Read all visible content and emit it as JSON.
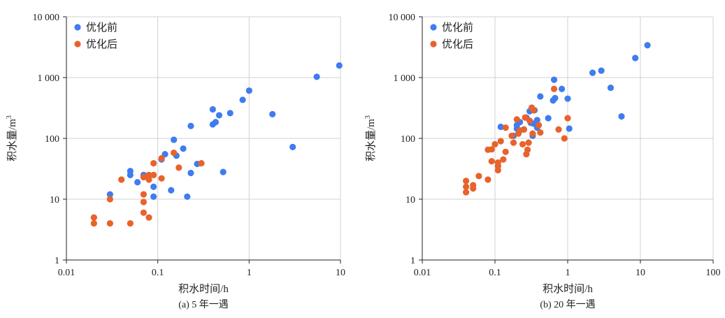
{
  "colors": {
    "before": "#3F7CF0",
    "after": "#E8622C",
    "grid": "#D0D0D0",
    "axis": "#222222"
  },
  "chart_data": [
    {
      "type": "scatter",
      "caption": "(a) 5 年一遇",
      "xlabel": "积水时间/h",
      "ylabel_main": "积水量/m",
      "ylabel_sup": "3",
      "xscale": "log",
      "yscale": "log",
      "xlim": [
        0.01,
        10
      ],
      "ylim": [
        1,
        10000
      ],
      "xticks": [
        0.01,
        0.1,
        1,
        10
      ],
      "xtick_labels": [
        "0.01",
        "0.1",
        "1",
        "10"
      ],
      "yticks": [
        1,
        10,
        100,
        1000,
        10000
      ],
      "ytick_labels": [
        "1",
        "10",
        "100",
        "1 000",
        "10 000"
      ],
      "grid": true,
      "legend_position": "top-left",
      "series": [
        {
          "name": "优化前",
          "color_key": "before",
          "points": [
            [
              0.03,
              12
            ],
            [
              0.05,
              25
            ],
            [
              0.05,
              29
            ],
            [
              0.06,
              19
            ],
            [
              0.07,
              25
            ],
            [
              0.09,
              16
            ],
            [
              0.09,
              11
            ],
            [
              0.11,
              45
            ],
            [
              0.12,
              55
            ],
            [
              0.14,
              14
            ],
            [
              0.15,
              95
            ],
            [
              0.16,
              52
            ],
            [
              0.19,
              68
            ],
            [
              0.21,
              11
            ],
            [
              0.23,
              27
            ],
            [
              0.23,
              160
            ],
            [
              0.27,
              38
            ],
            [
              0.4,
              300
            ],
            [
              0.4,
              170
            ],
            [
              0.43,
              185
            ],
            [
              0.47,
              240
            ],
            [
              0.52,
              28
            ],
            [
              0.62,
              260
            ],
            [
              0.85,
              430
            ],
            [
              1.0,
              610
            ],
            [
              1.8,
              250
            ],
            [
              3.0,
              72
            ],
            [
              5.5,
              1030
            ],
            [
              9.7,
              1580
            ]
          ]
        },
        {
          "name": "优化后",
          "color_key": "after",
          "points": [
            [
              0.02,
              5
            ],
            [
              0.02,
              4
            ],
            [
              0.03,
              10
            ],
            [
              0.03,
              4
            ],
            [
              0.04,
              21
            ],
            [
              0.05,
              4
            ],
            [
              0.07,
              23
            ],
            [
              0.07,
              12
            ],
            [
              0.07,
              9
            ],
            [
              0.07,
              6
            ],
            [
              0.08,
              25
            ],
            [
              0.08,
              21
            ],
            [
              0.08,
              5
            ],
            [
              0.09,
              39
            ],
            [
              0.09,
              25
            ],
            [
              0.11,
              22
            ],
            [
              0.11,
              47
            ],
            [
              0.15,
              58
            ],
            [
              0.17,
              33
            ],
            [
              0.3,
              39
            ]
          ]
        }
      ]
    },
    {
      "type": "scatter",
      "caption": "(b) 20 年一遇",
      "xlabel": "积水时间/h",
      "ylabel_main": "积水量/m",
      "ylabel_sup": "3",
      "xscale": "log",
      "yscale": "log",
      "xlim": [
        0.01,
        100
      ],
      "ylim": [
        1,
        10000
      ],
      "xticks": [
        0.01,
        0.1,
        1,
        10,
        100
      ],
      "xtick_labels": [
        "0.01",
        "0.1",
        "1",
        "10",
        "100"
      ],
      "yticks": [
        1,
        10,
        100,
        1000,
        10000
      ],
      "ytick_labels": [
        "1",
        "10",
        "100",
        "1 000",
        "10 000"
      ],
      "grid": true,
      "legend_position": "top-left",
      "series": [
        {
          "name": "优化前",
          "color_key": "before",
          "points": [
            [
              0.12,
              155
            ],
            [
              0.18,
              110
            ],
            [
              0.2,
              145
            ],
            [
              0.2,
              165
            ],
            [
              0.22,
              185
            ],
            [
              0.25,
              140
            ],
            [
              0.27,
              220
            ],
            [
              0.3,
              280
            ],
            [
              0.31,
              180
            ],
            [
              0.32,
              300
            ],
            [
              0.33,
              110
            ],
            [
              0.34,
              175
            ],
            [
              0.35,
              290
            ],
            [
              0.38,
              150
            ],
            [
              0.38,
              200
            ],
            [
              0.42,
              490
            ],
            [
              0.54,
              215
            ],
            [
              0.63,
              420
            ],
            [
              0.65,
              920
            ],
            [
              0.67,
              460
            ],
            [
              0.83,
              650
            ],
            [
              1.0,
              450
            ],
            [
              1.05,
              145
            ],
            [
              2.2,
              1200
            ],
            [
              2.9,
              1300
            ],
            [
              3.9,
              680
            ],
            [
              5.5,
              230
            ],
            [
              8.5,
              2100
            ],
            [
              12.5,
              3400
            ]
          ]
        },
        {
          "name": "优化后",
          "color_key": "after",
          "points": [
            [
              0.04,
              20
            ],
            [
              0.04,
              16
            ],
            [
              0.04,
              13
            ],
            [
              0.05,
              17
            ],
            [
              0.05,
              15
            ],
            [
              0.06,
              24
            ],
            [
              0.08,
              21
            ],
            [
              0.08,
              65
            ],
            [
              0.09,
              42
            ],
            [
              0.09,
              66
            ],
            [
              0.1,
              80
            ],
            [
              0.11,
              40
            ],
            [
              0.11,
              35
            ],
            [
              0.11,
              30
            ],
            [
              0.12,
              90
            ],
            [
              0.13,
              45
            ],
            [
              0.14,
              150
            ],
            [
              0.14,
              60
            ],
            [
              0.17,
              110
            ],
            [
              0.18,
              85
            ],
            [
              0.2,
              205
            ],
            [
              0.21,
              120
            ],
            [
              0.22,
              135
            ],
            [
              0.24,
              80
            ],
            [
              0.25,
              140
            ],
            [
              0.26,
              220
            ],
            [
              0.27,
              55
            ],
            [
              0.28,
              65
            ],
            [
              0.29,
              85
            ],
            [
              0.3,
              195
            ],
            [
              0.32,
              320
            ],
            [
              0.33,
              120
            ],
            [
              0.34,
              290
            ],
            [
              0.4,
              165
            ],
            [
              0.42,
              125
            ],
            [
              0.65,
              650
            ],
            [
              0.75,
              140
            ],
            [
              0.9,
              100
            ],
            [
              1.0,
              215
            ]
          ]
        }
      ]
    }
  ]
}
